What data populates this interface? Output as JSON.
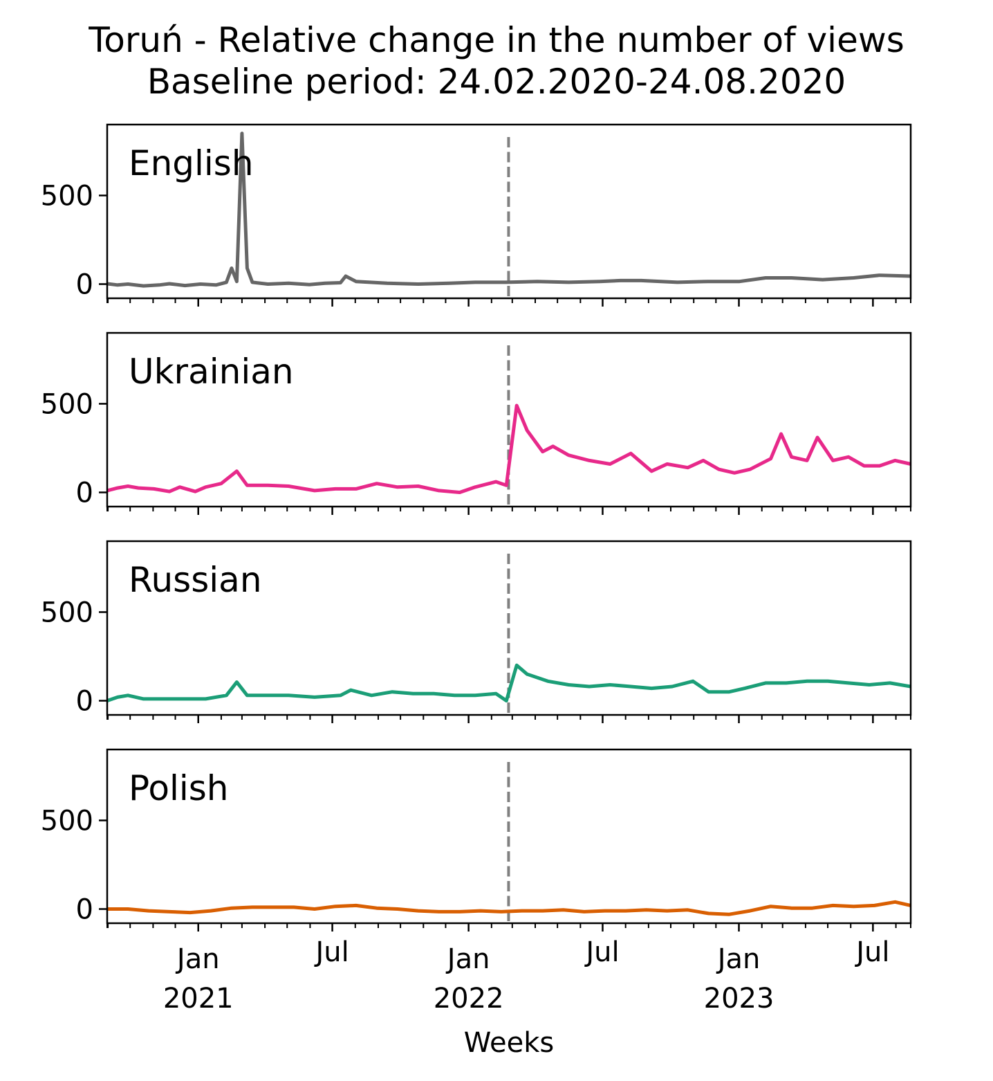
{
  "chart_data": {
    "type": "line",
    "title": "Toruń - Relative change in the number of views",
    "subtitle": "Baseline period: 24.02.2020-24.08.2020",
    "xlabel": "Weeks",
    "ylim": [
      -80,
      900
    ],
    "yticks": [
      0,
      500
    ],
    "x_ticks": [
      {
        "date": "2021-01-01",
        "line1": "Jan",
        "line2": "2021"
      },
      {
        "date": "2021-07-01",
        "line1": "Jul",
        "line2": ""
      },
      {
        "date": "2022-01-01",
        "line1": "Jan",
        "line2": "2022"
      },
      {
        "date": "2022-07-01",
        "line1": "Jul",
        "line2": ""
      },
      {
        "date": "2023-01-01",
        "line1": "Jan",
        "line2": "2023"
      },
      {
        "date": "2023-07-01",
        "line1": "Jul",
        "line2": ""
      }
    ],
    "xlim": [
      "2020-08-31",
      "2023-08-21"
    ],
    "reference_line": {
      "date": "2022-02-24",
      "style": "dashed",
      "color": "#808080"
    },
    "panels": [
      {
        "label": "English",
        "color": "#666666",
        "points": [
          [
            "2020-08-31",
            2
          ],
          [
            "2020-09-14",
            -5
          ],
          [
            "2020-09-28",
            0
          ],
          [
            "2020-10-19",
            -10
          ],
          [
            "2020-11-09",
            -5
          ],
          [
            "2020-11-23",
            2
          ],
          [
            "2020-12-14",
            -8
          ],
          [
            "2021-01-04",
            0
          ],
          [
            "2021-01-25",
            -5
          ],
          [
            "2021-02-08",
            10
          ],
          [
            "2021-02-15",
            90
          ],
          [
            "2021-02-22",
            15
          ],
          [
            "2021-03-01",
            850
          ],
          [
            "2021-03-08",
            90
          ],
          [
            "2021-03-15",
            10
          ],
          [
            "2021-04-05",
            0
          ],
          [
            "2021-05-03",
            5
          ],
          [
            "2021-05-31",
            -3
          ],
          [
            "2021-06-21",
            5
          ],
          [
            "2021-07-12",
            8
          ],
          [
            "2021-07-19",
            45
          ],
          [
            "2021-08-02",
            15
          ],
          [
            "2021-09-13",
            5
          ],
          [
            "2021-10-25",
            0
          ],
          [
            "2021-12-06",
            5
          ],
          [
            "2022-01-10",
            10
          ],
          [
            "2022-02-21",
            10
          ],
          [
            "2022-04-04",
            15
          ],
          [
            "2022-05-16",
            10
          ],
          [
            "2022-06-27",
            15
          ],
          [
            "2022-07-25",
            20
          ],
          [
            "2022-08-22",
            20
          ],
          [
            "2022-10-10",
            10
          ],
          [
            "2022-11-21",
            15
          ],
          [
            "2023-01-02",
            15
          ],
          [
            "2023-02-06",
            35
          ],
          [
            "2023-03-13",
            35
          ],
          [
            "2023-04-24",
            25
          ],
          [
            "2023-06-05",
            35
          ],
          [
            "2023-07-10",
            50
          ],
          [
            "2023-08-21",
            45
          ]
        ]
      },
      {
        "label": "Ukrainian",
        "color": "#e7298a",
        "points": [
          [
            "2020-08-31",
            10
          ],
          [
            "2020-09-14",
            25
          ],
          [
            "2020-09-28",
            35
          ],
          [
            "2020-10-12",
            25
          ],
          [
            "2020-11-02",
            20
          ],
          [
            "2020-11-23",
            5
          ],
          [
            "2020-12-07",
            30
          ],
          [
            "2020-12-28",
            5
          ],
          [
            "2021-01-11",
            30
          ],
          [
            "2021-02-01",
            50
          ],
          [
            "2021-02-22",
            120
          ],
          [
            "2021-03-08",
            40
          ],
          [
            "2021-04-05",
            40
          ],
          [
            "2021-05-03",
            35
          ],
          [
            "2021-06-07",
            10
          ],
          [
            "2021-07-05",
            20
          ],
          [
            "2021-08-02",
            20
          ],
          [
            "2021-08-30",
            50
          ],
          [
            "2021-09-27",
            30
          ],
          [
            "2021-10-25",
            35
          ],
          [
            "2021-11-22",
            10
          ],
          [
            "2021-12-20",
            0
          ],
          [
            "2022-01-10",
            30
          ],
          [
            "2022-02-07",
            60
          ],
          [
            "2022-02-21",
            40
          ],
          [
            "2022-03-07",
            490
          ],
          [
            "2022-03-21",
            350
          ],
          [
            "2022-04-11",
            230
          ],
          [
            "2022-04-25",
            260
          ],
          [
            "2022-05-16",
            210
          ],
          [
            "2022-06-13",
            180
          ],
          [
            "2022-07-11",
            160
          ],
          [
            "2022-08-08",
            220
          ],
          [
            "2022-09-05",
            120
          ],
          [
            "2022-09-26",
            160
          ],
          [
            "2022-10-24",
            140
          ],
          [
            "2022-11-14",
            180
          ],
          [
            "2022-12-05",
            130
          ],
          [
            "2022-12-26",
            110
          ],
          [
            "2023-01-16",
            130
          ],
          [
            "2023-02-13",
            190
          ],
          [
            "2023-02-27",
            330
          ],
          [
            "2023-03-13",
            200
          ],
          [
            "2023-04-03",
            180
          ],
          [
            "2023-04-17",
            310
          ],
          [
            "2023-05-08",
            180
          ],
          [
            "2023-05-29",
            200
          ],
          [
            "2023-06-19",
            150
          ],
          [
            "2023-07-10",
            150
          ],
          [
            "2023-07-31",
            180
          ],
          [
            "2023-08-21",
            160
          ]
        ]
      },
      {
        "label": "Russian",
        "color": "#1b9e77",
        "points": [
          [
            "2020-08-31",
            0
          ],
          [
            "2020-09-14",
            20
          ],
          [
            "2020-09-28",
            30
          ],
          [
            "2020-10-19",
            10
          ],
          [
            "2020-11-16",
            10
          ],
          [
            "2020-12-14",
            10
          ],
          [
            "2021-01-11",
            10
          ],
          [
            "2021-02-08",
            30
          ],
          [
            "2021-02-22",
            105
          ],
          [
            "2021-03-08",
            30
          ],
          [
            "2021-04-05",
            30
          ],
          [
            "2021-05-03",
            30
          ],
          [
            "2021-06-07",
            20
          ],
          [
            "2021-07-12",
            30
          ],
          [
            "2021-07-26",
            60
          ],
          [
            "2021-08-23",
            30
          ],
          [
            "2021-09-20",
            50
          ],
          [
            "2021-10-18",
            40
          ],
          [
            "2021-11-15",
            40
          ],
          [
            "2021-12-13",
            30
          ],
          [
            "2022-01-10",
            30
          ],
          [
            "2022-02-07",
            40
          ],
          [
            "2022-02-21",
            0
          ],
          [
            "2022-03-07",
            200
          ],
          [
            "2022-03-21",
            150
          ],
          [
            "2022-04-18",
            110
          ],
          [
            "2022-05-16",
            90
          ],
          [
            "2022-06-13",
            80
          ],
          [
            "2022-07-11",
            90
          ],
          [
            "2022-08-08",
            80
          ],
          [
            "2022-09-05",
            70
          ],
          [
            "2022-10-03",
            80
          ],
          [
            "2022-10-31",
            110
          ],
          [
            "2022-11-21",
            50
          ],
          [
            "2022-12-19",
            50
          ],
          [
            "2023-01-09",
            70
          ],
          [
            "2023-02-06",
            100
          ],
          [
            "2023-03-06",
            100
          ],
          [
            "2023-04-03",
            110
          ],
          [
            "2023-05-01",
            110
          ],
          [
            "2023-05-29",
            100
          ],
          [
            "2023-06-26",
            90
          ],
          [
            "2023-07-24",
            100
          ],
          [
            "2023-08-21",
            80
          ]
        ]
      },
      {
        "label": "Polish",
        "color": "#d95f02",
        "points": [
          [
            "2020-08-31",
            0
          ],
          [
            "2020-09-28",
            0
          ],
          [
            "2020-10-26",
            -10
          ],
          [
            "2020-11-23",
            -15
          ],
          [
            "2020-12-21",
            -20
          ],
          [
            "2021-01-18",
            -10
          ],
          [
            "2021-02-15",
            5
          ],
          [
            "2021-03-15",
            10
          ],
          [
            "2021-04-12",
            10
          ],
          [
            "2021-05-10",
            10
          ],
          [
            "2021-06-07",
            0
          ],
          [
            "2021-07-05",
            15
          ],
          [
            "2021-08-02",
            20
          ],
          [
            "2021-08-30",
            5
          ],
          [
            "2021-09-27",
            0
          ],
          [
            "2021-10-25",
            -10
          ],
          [
            "2021-11-22",
            -15
          ],
          [
            "2021-12-20",
            -15
          ],
          [
            "2022-01-17",
            -10
          ],
          [
            "2022-02-14",
            -15
          ],
          [
            "2022-03-14",
            -10
          ],
          [
            "2022-04-11",
            -10
          ],
          [
            "2022-05-09",
            -5
          ],
          [
            "2022-06-06",
            -15
          ],
          [
            "2022-07-04",
            -10
          ],
          [
            "2022-08-01",
            -10
          ],
          [
            "2022-08-29",
            -5
          ],
          [
            "2022-09-26",
            -10
          ],
          [
            "2022-10-24",
            -5
          ],
          [
            "2022-11-21",
            -25
          ],
          [
            "2022-12-19",
            -30
          ],
          [
            "2023-01-16",
            -10
          ],
          [
            "2023-02-13",
            15
          ],
          [
            "2023-03-13",
            5
          ],
          [
            "2023-04-10",
            5
          ],
          [
            "2023-05-08",
            20
          ],
          [
            "2023-06-05",
            15
          ],
          [
            "2023-07-03",
            20
          ],
          [
            "2023-07-31",
            40
          ],
          [
            "2023-08-21",
            20
          ]
        ]
      }
    ]
  }
}
